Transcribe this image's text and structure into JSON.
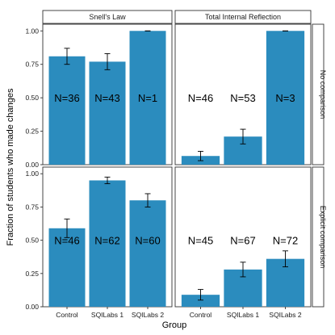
{
  "chart_data": {
    "type": "bar",
    "xlabel": "Group",
    "ylabel": "Fraction of students who made changes",
    "ylim": [
      0,
      1.05
    ],
    "yticks": [
      "0.00",
      "0.25",
      "0.50",
      "0.75",
      "1.00"
    ],
    "categories": [
      "Control",
      "SQILabs 1",
      "SQILabs 2"
    ],
    "column_strips": [
      "Snell's Law",
      "Total Internal Reflection"
    ],
    "row_strips": [
      "No comparison",
      "Explicit comparison"
    ],
    "bar_color": "#2b8cbe",
    "panels": [
      {
        "row": "No comparison",
        "column": "Snell's Law",
        "values": [
          0.81,
          0.77,
          1.0
        ],
        "errors": [
          0.06,
          0.06,
          0.0
        ],
        "n_labels": [
          "N=36",
          "N=43",
          "N=1"
        ]
      },
      {
        "row": "No comparison",
        "column": "Total Internal Reflection",
        "values": [
          0.065,
          0.21,
          1.0
        ],
        "errors": [
          0.035,
          0.055,
          0.0
        ],
        "n_labels": [
          "N=46",
          "N=53",
          "N=3"
        ]
      },
      {
        "row": "Explicit comparison",
        "column": "Snell's Law",
        "values": [
          0.59,
          0.95,
          0.8
        ],
        "errors": [
          0.07,
          0.025,
          0.05
        ],
        "n_labels": [
          "N=46",
          "N=62",
          "N=60"
        ]
      },
      {
        "row": "Explicit comparison",
        "column": "Total Internal Reflection",
        "values": [
          0.09,
          0.28,
          0.36
        ],
        "errors": [
          0.04,
          0.055,
          0.06
        ],
        "n_labels": [
          "N=45",
          "N=67",
          "N=72"
        ]
      }
    ]
  }
}
